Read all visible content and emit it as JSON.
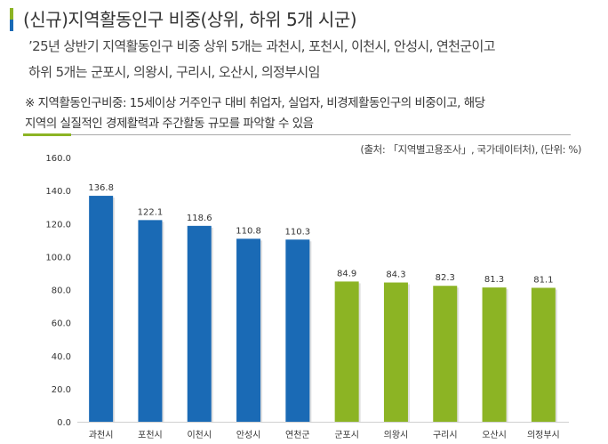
{
  "header": {
    "title": "(신규)지역활동인구 비중(상위, 하위 5개 시군)",
    "summary_lines": [
      "’25년 상반기 지역활동인구 비중 상위 5개는 과천시, 포천시, 이천시, 안성시, 연천군이고",
      "하위 5개는 군포시, 의왕시, 구리시, 오산시, 의정부시임"
    ],
    "note_lines": [
      "※ 지역활동인구비중: 15세이상 거주인구 대비 취업자, 실업자, 비경제활동인구의 비중이고, 해당",
      "지역의 실질적인 경제활력과 주간활동 규모를 파악할 수 있음"
    ],
    "source": "(출처: 「지역별고용조사」, 국가데이터처), (단위: %)"
  },
  "colors": {
    "top5": "#1a6ab5",
    "bottom5": "#8cb424",
    "accent_bar_top": "#8cb424",
    "accent_bar_bottom": "#1a6ab5"
  },
  "chart_data": {
    "type": "bar",
    "categories": [
      "과천시",
      "포천시",
      "이천시",
      "안성시",
      "연천군",
      "군포시",
      "의왕시",
      "구리시",
      "오산시",
      "의정부시"
    ],
    "values": [
      136.8,
      122.1,
      118.6,
      110.8,
      110.3,
      84.9,
      84.3,
      82.3,
      81.3,
      81.1
    ],
    "data_labels": [
      "136.8",
      "122.1",
      "118.6",
      "110.8",
      "110.3",
      "84.9",
      "84.3",
      "82.3",
      "81.3",
      "81.1"
    ],
    "bar_colors": [
      "#1a6ab5",
      "#1a6ab5",
      "#1a6ab5",
      "#1a6ab5",
      "#1a6ab5",
      "#8cb424",
      "#8cb424",
      "#8cb424",
      "#8cb424",
      "#8cb424"
    ],
    "ylim": [
      0,
      160
    ],
    "yticks": [
      "0.0",
      "20.0",
      "40.0",
      "60.0",
      "80.0",
      "100.0",
      "120.0",
      "140.0",
      "160.0"
    ],
    "grid": false,
    "legend": "none"
  }
}
